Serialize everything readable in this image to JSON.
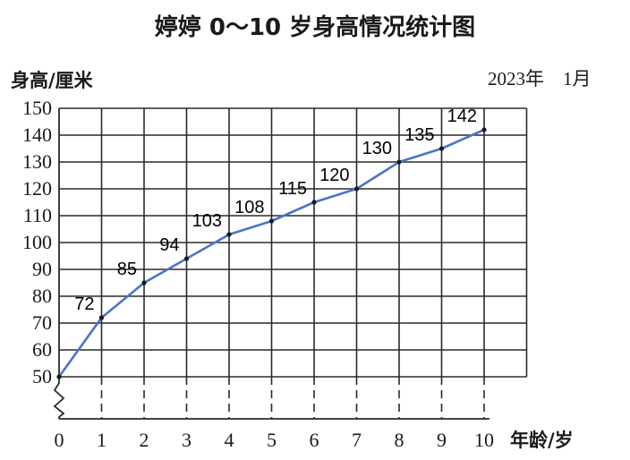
{
  "chart_data": {
    "type": "line",
    "title": "婷婷 0～10 岁身高情况统计图",
    "ylabel": "身高/厘米",
    "xlabel": "年龄/岁",
    "date_label": "2023年　1月",
    "x": [
      0,
      1,
      2,
      3,
      4,
      5,
      6,
      7,
      8,
      9,
      10
    ],
    "x_tick_labels": [
      "0",
      "1",
      "2",
      "3",
      "4",
      "5",
      "6",
      "7",
      "8",
      "9",
      "10"
    ],
    "series": [
      {
        "values": [
          50,
          72,
          85,
          94,
          103,
          108,
          115,
          120,
          130,
          135,
          142
        ]
      }
    ],
    "data_labels": [
      "72",
      "85",
      "94",
      "103",
      "108",
      "115",
      "120",
      "130",
      "135",
      "142"
    ],
    "y_ticks": [
      50,
      60,
      70,
      80,
      90,
      100,
      110,
      120,
      130,
      140,
      150
    ],
    "y_tick_labels": [
      "50",
      "60",
      "70",
      "80",
      "90",
      "100",
      "110",
      "120",
      "130",
      "140",
      "150"
    ],
    "ylim": [
      50,
      150
    ],
    "y_axis_break": true,
    "grid": true,
    "line_color": "#4a74c9",
    "marker_color": "#1a1a1a"
  }
}
